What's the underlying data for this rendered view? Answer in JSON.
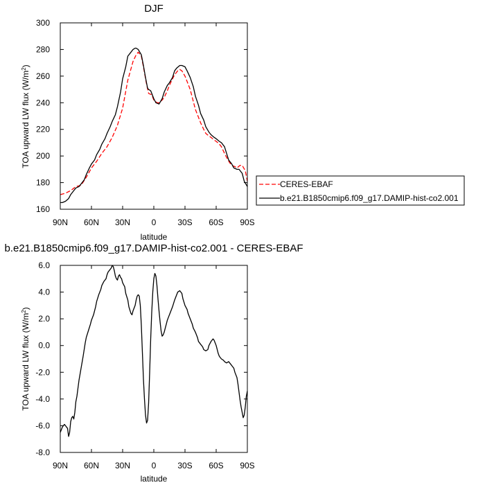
{
  "chart_data": [
    {
      "type": "line",
      "title": "DJF",
      "xlabel": "latitude",
      "ylabel": "TOA upward LW flux (W/m",
      "ylabel_sup": "2",
      "ylabel_end": ")",
      "xlim": [
        90,
        -90
      ],
      "ylim": [
        160,
        300
      ],
      "x_ticks": [
        90,
        60,
        30,
        0,
        -30,
        -60,
        -90
      ],
      "x_tick_labels": [
        "90N",
        "60N",
        "30N",
        "0",
        "30S",
        "60S",
        "90S"
      ],
      "y_ticks": [
        160,
        180,
        200,
        220,
        240,
        260,
        280,
        300
      ],
      "y_tick_labels": [
        "160",
        "180",
        "200",
        "220",
        "240",
        "260",
        "280",
        "300"
      ],
      "grid": false,
      "legend_position": "right",
      "series": [
        {
          "name": "CERES-EBAF",
          "color": "#ff0000",
          "dash": "dashed",
          "x": [
            90,
            85,
            80,
            75,
            70,
            65,
            60,
            55,
            50,
            45,
            40,
            35,
            30,
            25,
            20,
            17,
            15,
            12,
            10,
            7,
            5,
            2,
            0,
            -3,
            -5,
            -8,
            -10,
            -13,
            -15,
            -18,
            -20,
            -23,
            -25,
            -27,
            -30,
            -32,
            -35,
            -38,
            -40,
            -43,
            -45,
            -48,
            -50,
            -53,
            -55,
            -58,
            -60,
            -63,
            -65,
            -68,
            -70,
            -73,
            -75,
            -78,
            -80,
            -83,
            -85,
            -88,
            -90
          ],
          "values": [
            171,
            172,
            174,
            177,
            178,
            184,
            191,
            196,
            202,
            207,
            214,
            223,
            236,
            257,
            271,
            276,
            278,
            275,
            267,
            254,
            247,
            246,
            242,
            240,
            240,
            242,
            244,
            249,
            253,
            258,
            261,
            264,
            265,
            264,
            260,
            256,
            250,
            241,
            235,
            229,
            225,
            220,
            217,
            215,
            214,
            212,
            211,
            209,
            207,
            202,
            199,
            195,
            193,
            192,
            191,
            193,
            193,
            189,
            181
          ]
        },
        {
          "name": "b.e21.B1850cmip6.f09_g17.DAMIP-hist-co2.001",
          "color": "#000000",
          "dash": "solid",
          "x": [
            90,
            88,
            85,
            82,
            80,
            77,
            75,
            72,
            70,
            67,
            65,
            62,
            60,
            57,
            55,
            52,
            50,
            47,
            45,
            42,
            40,
            37,
            35,
            32,
            30,
            27,
            25,
            22,
            20,
            18,
            17,
            15,
            12,
            10,
            8,
            6,
            5,
            3,
            2,
            0,
            -2,
            -5,
            -8,
            -10,
            -13,
            -15,
            -18,
            -20,
            -22,
            -25,
            -27,
            -30,
            -32,
            -35,
            -38,
            -40,
            -43,
            -45,
            -48,
            -50,
            -53,
            -55,
            -58,
            -60,
            -63,
            -65,
            -68,
            -70,
            -72,
            -75,
            -77,
            -80,
            -82,
            -85,
            -87,
            -90
          ],
          "values": [
            165,
            165,
            166,
            168,
            171,
            174,
            176,
            177,
            179,
            182,
            186,
            191,
            194,
            197,
            201,
            205,
            209,
            213,
            217,
            222,
            226,
            231,
            237,
            248,
            258,
            267,
            275,
            278,
            280,
            281,
            281,
            280,
            276,
            268,
            259,
            251,
            250,
            249,
            247,
            243,
            240,
            239,
            243,
            248,
            253,
            255,
            259,
            264,
            266,
            268,
            268,
            267,
            264,
            259,
            252,
            245,
            238,
            232,
            227,
            222,
            218,
            216,
            214,
            213,
            211,
            210,
            207,
            202,
            197,
            194,
            191,
            190,
            190,
            187,
            181,
            177
          ]
        }
      ]
    },
    {
      "type": "line",
      "title": "b.e21.B1850cmip6.f09_g17.DAMIP-hist-co2.001 - CERES-EBAF",
      "xlabel": "latitude",
      "ylabel": "TOA upward LW flux (W/m",
      "ylabel_sup": "2",
      "ylabel_end": ")",
      "xlim": [
        90,
        -90
      ],
      "ylim": [
        -8,
        6
      ],
      "x_ticks": [
        90,
        60,
        30,
        0,
        -30,
        -60,
        -90
      ],
      "x_tick_labels": [
        "90N",
        "60N",
        "30N",
        "0",
        "30S",
        "60S",
        "90S"
      ],
      "y_ticks": [
        -8,
        -6,
        -4,
        -2,
        0,
        2,
        4,
        6
      ],
      "y_tick_labels": [
        "-8.0",
        "-6.0",
        "-4.0",
        "-2.0",
        "0.0",
        "2.0",
        "4.0",
        "6.0"
      ],
      "grid": false,
      "series": [
        {
          "color": "#000000",
          "dash": "solid",
          "x": [
            90,
            88,
            86,
            85,
            83,
            82,
            81,
            80,
            79,
            78,
            77,
            76,
            75,
            74,
            73,
            72,
            70,
            68,
            66,
            65,
            63,
            61,
            60,
            58,
            56,
            55,
            53,
            51,
            50,
            48,
            46,
            45,
            44,
            42,
            41,
            40,
            39,
            38,
            37,
            36,
            35,
            34,
            33,
            32,
            31,
            30,
            28,
            27,
            25,
            24,
            22,
            21,
            20,
            18,
            17,
            16,
            15,
            14,
            13,
            12,
            11,
            10,
            9,
            8,
            7,
            6,
            5,
            4,
            3,
            2,
            1,
            0,
            -1,
            -2,
            -3,
            -4,
            -5,
            -6,
            -7,
            -8,
            -9,
            -10,
            -11,
            -12,
            -13,
            -14,
            -15,
            -16,
            -17,
            -18,
            -20,
            -22,
            -23,
            -25,
            -27,
            -28,
            -30,
            -32,
            -33,
            -35,
            -37,
            -38,
            -40,
            -42,
            -43,
            -45,
            -47,
            -48,
            -50,
            -52,
            -53,
            -55,
            -57,
            -58,
            -60,
            -61,
            -62,
            -63,
            -64,
            -65,
            -67,
            -68,
            -70,
            -72,
            -73,
            -74,
            -75,
            -77,
            -78,
            -80,
            -81,
            -82,
            -83,
            -84,
            -85,
            -86,
            -87,
            -88,
            -89,
            -90
          ],
          "values": [
            -6.5,
            -6.1,
            -5.9,
            -6.0,
            -6.2,
            -6.8,
            -6.5,
            -5.7,
            -5.4,
            -5.3,
            -5.5,
            -5.0,
            -4.2,
            -3.8,
            -3.2,
            -2.6,
            -1.7,
            -0.8,
            0.2,
            0.6,
            1.1,
            1.6,
            1.9,
            2.3,
            2.9,
            3.3,
            3.8,
            4.2,
            4.5,
            4.8,
            5.0,
            5.3,
            5.5,
            5.7,
            5.8,
            6.0,
            5.9,
            5.6,
            5.2,
            5.0,
            4.9,
            5.2,
            5.3,
            5.1,
            5.0,
            4.7,
            4.4,
            3.9,
            3.4,
            2.9,
            2.4,
            2.3,
            2.6,
            3.0,
            3.4,
            3.7,
            3.8,
            3.7,
            3.0,
            1.5,
            -0.5,
            -2.5,
            -4.0,
            -5.2,
            -5.8,
            -5.6,
            -4.3,
            -2.0,
            0.5,
            2.5,
            4.0,
            5.0,
            5.4,
            5.2,
            4.5,
            3.5,
            2.6,
            1.8,
            1.1,
            0.7,
            0.8,
            1.0,
            1.3,
            1.6,
            1.9,
            2.1,
            2.3,
            2.5,
            2.7,
            2.9,
            3.4,
            3.8,
            4.0,
            4.1,
            3.9,
            3.5,
            3.0,
            2.7,
            2.4,
            2.0,
            1.6,
            1.3,
            1.0,
            0.6,
            0.3,
            0.1,
            -0.1,
            -0.3,
            -0.4,
            -0.3,
            0.0,
            0.3,
            0.5,
            0.4,
            0.0,
            -0.3,
            -0.6,
            -0.8,
            -0.9,
            -1.0,
            -1.1,
            -1.2,
            -1.3,
            -1.2,
            -1.3,
            -1.4,
            -1.5,
            -1.7,
            -2.0,
            -2.4,
            -2.9,
            -3.5,
            -4.1,
            -4.6,
            -5.0,
            -5.4,
            -5.2,
            -4.6,
            -3.8,
            -3.4
          ]
        }
      ]
    }
  ]
}
